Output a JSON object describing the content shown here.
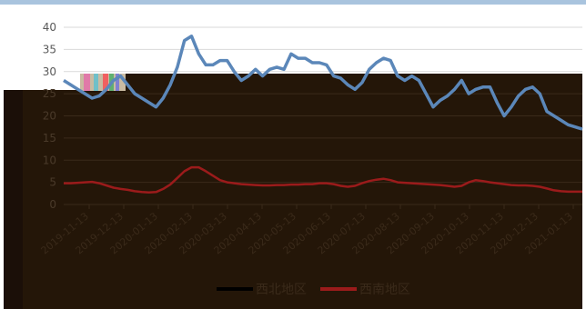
{
  "chart_data": {
    "type": "line",
    "ylim": [
      0,
      40
    ],
    "yticks": [
      "0",
      "5",
      "10",
      "15",
      "20",
      "25",
      "30",
      "35",
      "40"
    ],
    "grid": true,
    "legend_position": "bottom",
    "x_tick_labels": [
      "2019-11-13",
      "2019-12-13",
      "2020-01-13",
      "2020-02-13",
      "2020-03-13",
      "2020-04-13",
      "2020-05-13",
      "2020-06-13",
      "2020-07-13",
      "2020-08-13",
      "2020-09-13",
      "2020-10-13",
      "2020-11-13",
      "2020-12-13",
      "2021-01-13"
    ],
    "series": [
      {
        "name": "西北地区",
        "color": "#5b87b9",
        "values": [
          28,
          27,
          26,
          25,
          24,
          24.5,
          26,
          28,
          29,
          27,
          25,
          24,
          23,
          22,
          24,
          27,
          31,
          37,
          38,
          34,
          31.5,
          31.5,
          32.5,
          32.5,
          30,
          28,
          29,
          30.5,
          29,
          30.5,
          31,
          30.5,
          34,
          33,
          33,
          32,
          32,
          31.5,
          29,
          28.5,
          27,
          26,
          27.5,
          30.5,
          32,
          33,
          32.5,
          29,
          28,
          29,
          28,
          25,
          22,
          23.5,
          24.5,
          26,
          28,
          25,
          26,
          26.5,
          26.5,
          23,
          20,
          22,
          24.5,
          26,
          26.5,
          25,
          21,
          20,
          19,
          18,
          17.5,
          17
        ]
      },
      {
        "name": "西南地区",
        "color": "#9b1b1b",
        "values": [
          4.8,
          4.8,
          4.9,
          5,
          5.1,
          4.8,
          4.3,
          3.8,
          3.5,
          3.3,
          3,
          2.8,
          2.7,
          2.8,
          3.5,
          4.5,
          6,
          7.5,
          8.4,
          8.4,
          7.5,
          6.5,
          5.5,
          5,
          4.8,
          4.6,
          4.5,
          4.4,
          4.3,
          4.3,
          4.4,
          4.4,
          4.5,
          4.5,
          4.6,
          4.6,
          4.8,
          4.8,
          4.6,
          4.2,
          4,
          4.2,
          4.8,
          5.3,
          5.6,
          5.8,
          5.5,
          5,
          4.9,
          4.8,
          4.7,
          4.6,
          4.5,
          4.4,
          4.2,
          4,
          4.2,
          5,
          5.5,
          5.3,
          5,
          4.8,
          4.6,
          4.4,
          4.3,
          4.3,
          4.2,
          4,
          3.6,
          3.2,
          3,
          2.9,
          2.9,
          2.9
        ]
      }
    ]
  }
}
